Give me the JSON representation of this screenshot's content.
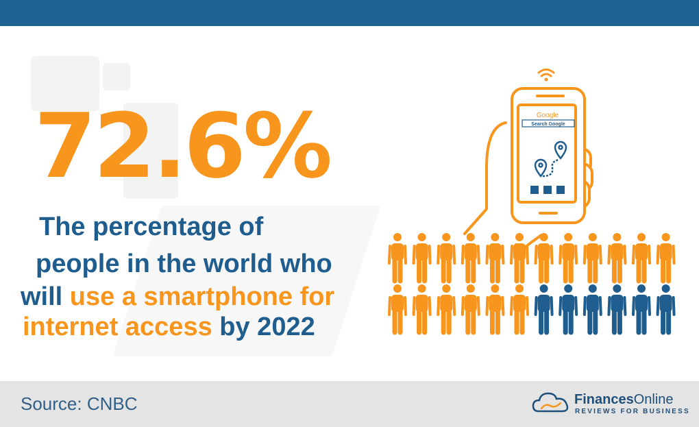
{
  "headline": {
    "stat": "72.6%",
    "line1": "The percentage of",
    "line2": "people in the world who",
    "line3_prefix": "will ",
    "line3_highlight": "use a smartphone for",
    "line4_highlight": "internet access",
    "line4_suffix": " by 2022"
  },
  "phone": {
    "brand": "Google",
    "search_placeholder": "Search Google"
  },
  "people_chart": {
    "total": 24,
    "highlighted": 18,
    "colors": {
      "highlighted": "#f7951d",
      "other": "#1e5d8e"
    }
  },
  "footer": {
    "source": "Source: CNBC",
    "brand_bold": "Finances",
    "brand_light": "Online",
    "tagline": "REVIEWS FOR BUSINESS"
  },
  "colors": {
    "top_bar": "#1e6294",
    "accent_orange": "#f7951d",
    "text_blue": "#1e5d8e",
    "footer_bg": "#e4e4e4"
  }
}
